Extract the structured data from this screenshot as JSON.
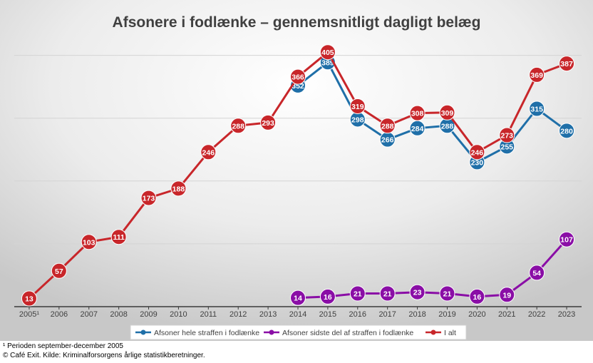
{
  "chart_data": {
    "type": "line",
    "title": "Afsonere i fodlænke – gennemsnitligt dagligt belæg",
    "categories": [
      "2005¹",
      "2006",
      "2007",
      "2008",
      "2009",
      "2010",
      "2011",
      "2012",
      "2013",
      "2014",
      "2015",
      "2016",
      "2017",
      "2018",
      "2019",
      "2020",
      "2021",
      "2022",
      "2023"
    ],
    "ylim": [
      0,
      420
    ],
    "grid": true,
    "legend_position": "bottom",
    "series": [
      {
        "name": "Afsoner hele straffen i fodlænke",
        "color": "#1f6fa8",
        "values": [
          null,
          null,
          null,
          null,
          null,
          null,
          null,
          null,
          null,
          352,
          389,
          298,
          266,
          284,
          288,
          230,
          255,
          315,
          280
        ]
      },
      {
        "name": "Afsoner sidste del af straffen i fodlænke",
        "color": "#8a0ea6",
        "values": [
          null,
          null,
          null,
          null,
          null,
          null,
          null,
          null,
          null,
          14,
          16,
          21,
          21,
          23,
          21,
          16,
          19,
          54,
          107
        ]
      },
      {
        "name": "I alt",
        "color": "#c8262a",
        "values": [
          13,
          57,
          103,
          111,
          173,
          188,
          246,
          288,
          293,
          366,
          405,
          319,
          288,
          308,
          309,
          246,
          273,
          369,
          387
        ]
      }
    ]
  },
  "footnotes": {
    "note1": "¹ Perioden september-december 2005",
    "source": "© Café Exit. Kilde: Kriminalforsorgens årlige statistikberetninger."
  }
}
